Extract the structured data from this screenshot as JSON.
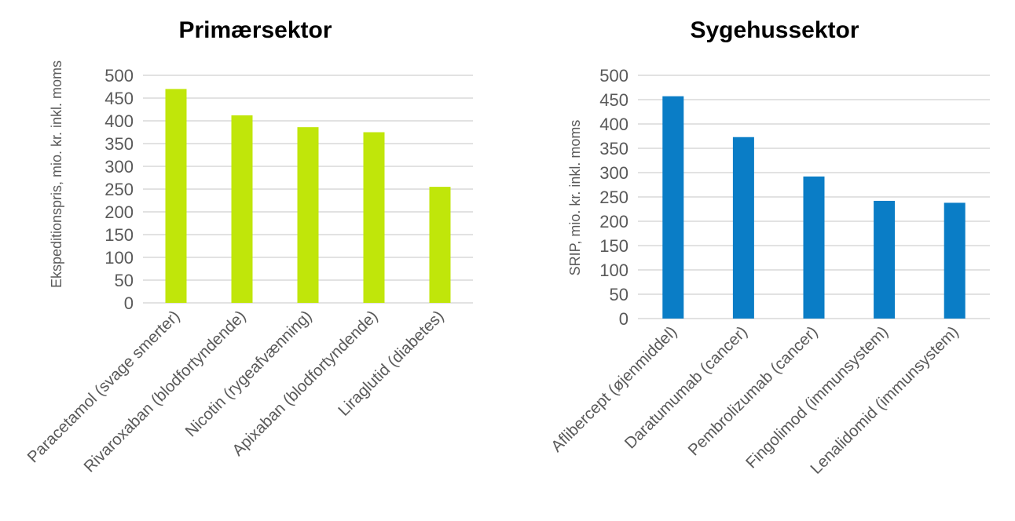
{
  "chart_data": [
    {
      "type": "bar",
      "title": "Primærsektor",
      "xlabel": "",
      "ylabel": "Ekspeditionspris, mio. kr. inkl. moms",
      "categories": [
        "Paracetamol (svage smerter)",
        "Rivaroxaban (blodfortyndende)",
        "Nicotin (rygeafvænning)",
        "Apixaban (blodfortyndende)",
        "Liraglutid (diabetes)"
      ],
      "values": [
        470,
        412,
        386,
        375,
        255
      ],
      "ylim": [
        0,
        500
      ],
      "yticks": [
        0,
        50,
        100,
        150,
        200,
        250,
        300,
        350,
        400,
        450,
        500
      ],
      "color": "#c0e60a",
      "grid": true,
      "legend": "none"
    },
    {
      "type": "bar",
      "title": "Sygehussektor",
      "xlabel": "",
      "ylabel": "SRIP, mio. kr. inkl. moms",
      "categories": [
        "Aflibercept (øjenmiddel)",
        "Daratumumab (cancer)",
        "Pembrolizumab (cancer)",
        "Fingolimod (immunsystem)",
        "Lenalidomid (immunsystem)"
      ],
      "values": [
        457,
        373,
        292,
        242,
        238
      ],
      "ylim": [
        0,
        500
      ],
      "yticks": [
        0,
        50,
        100,
        150,
        200,
        250,
        300,
        350,
        400,
        450,
        500
      ],
      "color": "#0a7dc6",
      "grid": true,
      "legend": "none"
    }
  ]
}
